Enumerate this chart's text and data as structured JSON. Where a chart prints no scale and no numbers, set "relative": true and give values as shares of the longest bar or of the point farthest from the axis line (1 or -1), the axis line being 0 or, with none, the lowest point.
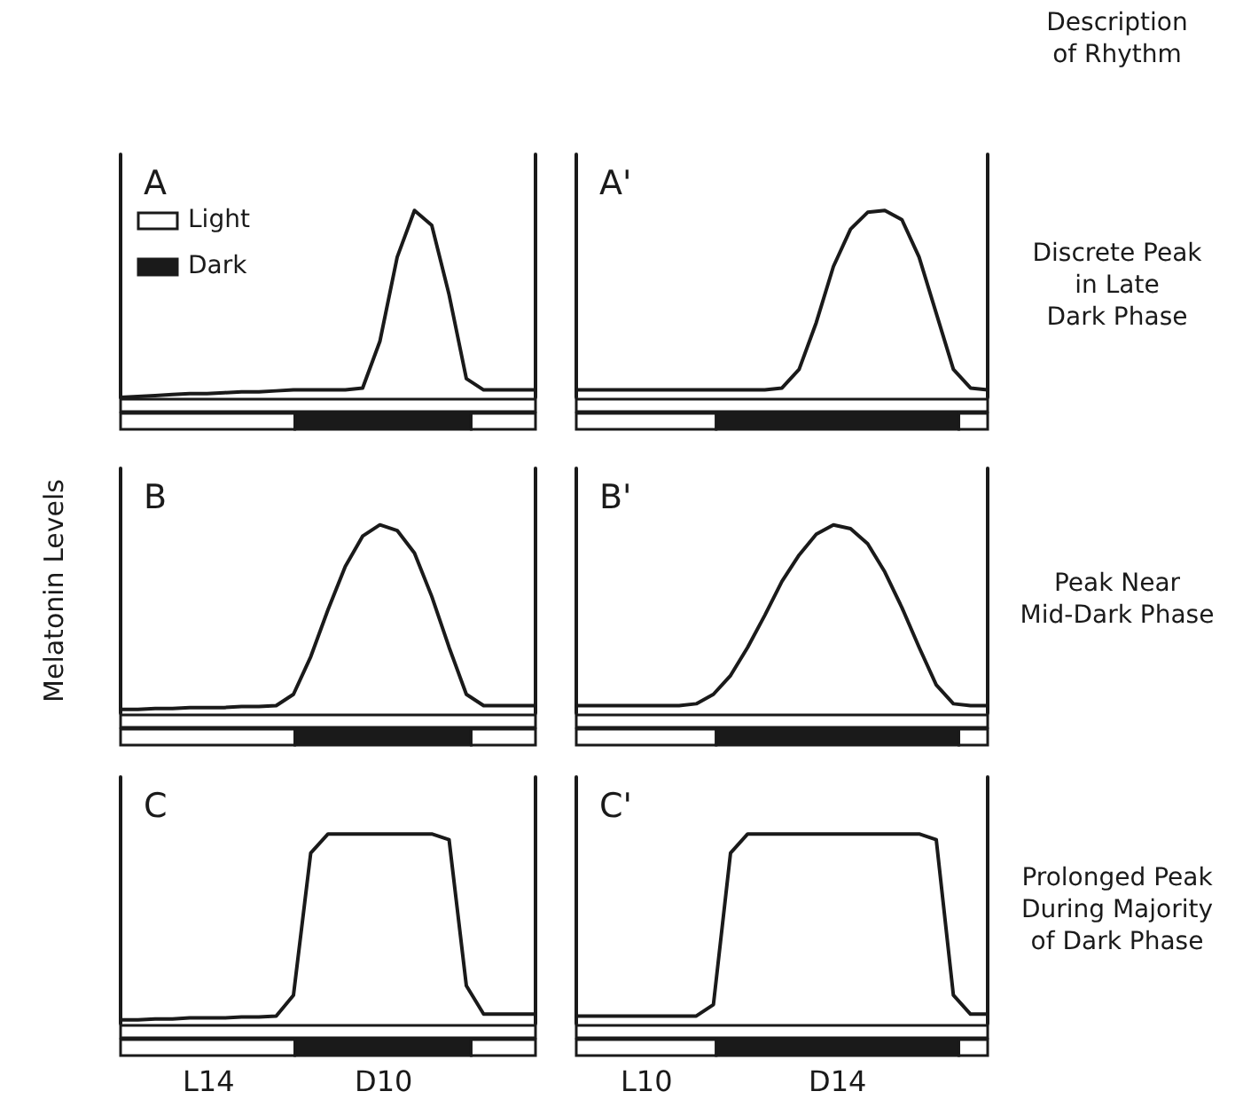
{
  "chart_data": [
    {
      "type": "line",
      "title": "A",
      "relative": true,
      "categories": [
        null,
        null,
        null,
        null,
        null,
        null,
        null,
        null,
        null,
        null,
        null,
        null,
        null,
        null,
        null,
        null,
        null,
        null,
        null,
        null,
        null,
        null,
        null,
        null,
        null
      ],
      "annotations": [
        "Light",
        "Dark"
      ],
      "series": [
        {
          "color": "#1a1a1a",
          "values": [
            0.0,
            0.005,
            0.01,
            0.015,
            0.02,
            0.02,
            0.025,
            0.03,
            0.03,
            0.035,
            0.04,
            0.04,
            0.04,
            0.04,
            0.05,
            0.3,
            0.75,
            1.0,
            0.92,
            0.55,
            0.1,
            0.04,
            0.04,
            0.04,
            0.04
          ]
        }
      ]
    },
    {
      "type": "line",
      "title": "A'",
      "relative": true,
      "categories": [
        null,
        null,
        null,
        null,
        null,
        null,
        null,
        null,
        null,
        null,
        null,
        null,
        null,
        null,
        null,
        null,
        null,
        null,
        null,
        null,
        null,
        null,
        null,
        null,
        null
      ],
      "annotations": [
        "Description\nof Rhythm",
        "Discrete Peak\nin Late\nDark Phase"
      ],
      "series": [
        {
          "color": "#1a1a1a",
          "values": [
            0.04,
            0.04,
            0.04,
            0.04,
            0.04,
            0.04,
            0.04,
            0.04,
            0.04,
            0.04,
            0.04,
            0.04,
            0.05,
            0.15,
            0.4,
            0.7,
            0.9,
            0.99,
            1.0,
            0.95,
            0.75,
            0.45,
            0.15,
            0.05,
            0.04
          ]
        }
      ]
    },
    {
      "type": "line",
      "title": "B",
      "ylabel": "Melatonin Levels",
      "relative": true,
      "categories": [
        null,
        null,
        null,
        null,
        null,
        null,
        null,
        null,
        null,
        null,
        null,
        null,
        null,
        null,
        null,
        null,
        null,
        null,
        null,
        null,
        null,
        null,
        null,
        null,
        null
      ],
      "series": [
        {
          "color": "#1a1a1a",
          "values": [
            0.02,
            0.02,
            0.025,
            0.025,
            0.03,
            0.03,
            0.03,
            0.035,
            0.035,
            0.04,
            0.1,
            0.3,
            0.55,
            0.78,
            0.94,
            1.0,
            0.97,
            0.85,
            0.62,
            0.35,
            0.1,
            0.04,
            0.04,
            0.04,
            0.04
          ]
        }
      ]
    },
    {
      "type": "line",
      "title": "B'",
      "relative": true,
      "categories": [
        null,
        null,
        null,
        null,
        null,
        null,
        null,
        null,
        null,
        null,
        null,
        null,
        null,
        null,
        null,
        null,
        null,
        null,
        null,
        null,
        null,
        null,
        null,
        null,
        null
      ],
      "annotations": [
        "Peak Near\nMid-Dark Phase"
      ],
      "series": [
        {
          "color": "#1a1a1a",
          "values": [
            0.04,
            0.04,
            0.04,
            0.04,
            0.04,
            0.04,
            0.04,
            0.05,
            0.1,
            0.2,
            0.35,
            0.52,
            0.7,
            0.84,
            0.95,
            1.0,
            0.98,
            0.9,
            0.75,
            0.56,
            0.35,
            0.15,
            0.05,
            0.04,
            0.04
          ]
        }
      ]
    },
    {
      "type": "line",
      "title": "C",
      "relative": true,
      "annotations": [
        "L14",
        "D10"
      ],
      "categories": [
        null,
        null,
        null,
        null,
        null,
        null,
        null,
        null,
        null,
        null,
        null,
        null,
        null,
        null,
        null,
        null,
        null,
        null,
        null,
        null,
        null,
        null,
        null,
        null,
        null
      ],
      "series": [
        {
          "color": "#1a1a1a",
          "values": [
            0.02,
            0.02,
            0.025,
            0.025,
            0.03,
            0.03,
            0.03,
            0.035,
            0.035,
            0.04,
            0.15,
            0.9,
            1.0,
            1.0,
            1.0,
            1.0,
            1.0,
            1.0,
            1.0,
            0.97,
            0.2,
            0.05,
            0.05,
            0.05,
            0.05
          ]
        }
      ]
    },
    {
      "type": "line",
      "title": "C'",
      "relative": true,
      "categories": [
        null,
        null,
        null,
        null,
        null,
        null,
        null,
        null,
        null,
        null,
        null,
        null,
        null,
        null,
        null,
        null,
        null,
        null,
        null,
        null,
        null,
        null,
        null,
        null,
        null
      ],
      "annotations": [
        "Prolonged Peak\nDuring Majority\nof Dark Phase",
        "L10",
        "D14"
      ],
      "series": [
        {
          "color": "#1a1a1a",
          "values": [
            0.04,
            0.04,
            0.04,
            0.04,
            0.04,
            0.04,
            0.04,
            0.04,
            0.1,
            0.9,
            1.0,
            1.0,
            1.0,
            1.0,
            1.0,
            1.0,
            1.0,
            1.0,
            1.0,
            1.0,
            1.0,
            0.97,
            0.15,
            0.05,
            0.05
          ]
        }
      ]
    }
  ]
}
